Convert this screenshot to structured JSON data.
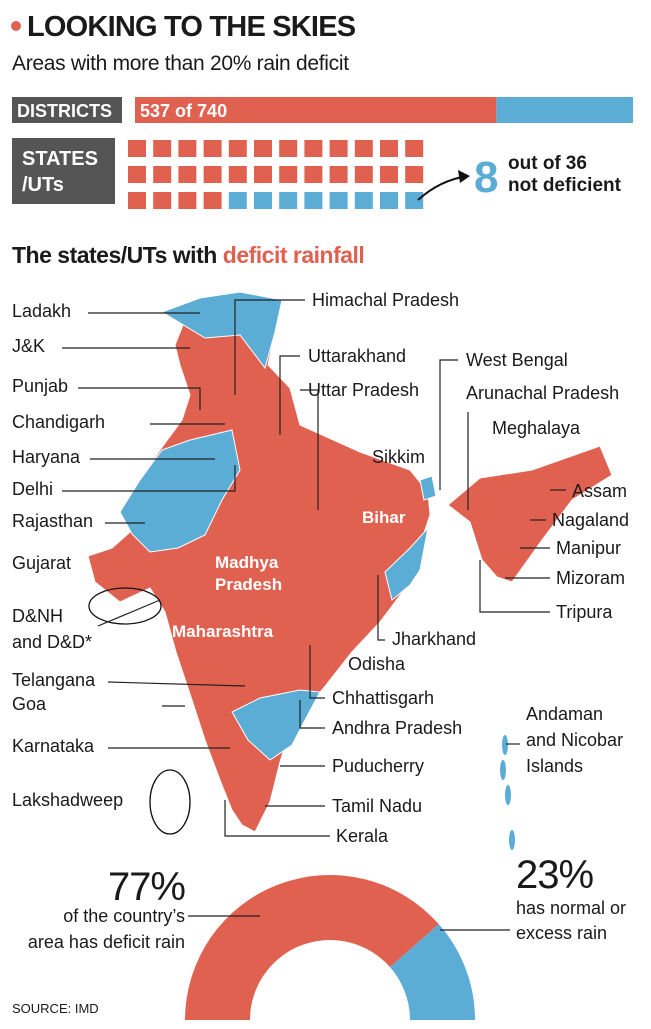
{
  "header": {
    "title": "LOOKING TO THE SKIES",
    "subtitle": "Areas with more than 20% rain deficit"
  },
  "districts": {
    "label": "DISTRICTS",
    "deficient": 537,
    "joiner": "of",
    "total": 740
  },
  "states": {
    "label_lines": [
      "STATES",
      "/UTs"
    ],
    "total": 36,
    "not_deficient": 8,
    "total_prefix": "out of",
    "note": "not deficient"
  },
  "colors": {
    "deficit": "#e06150",
    "normal": "#5badd6",
    "label_box": "#555555"
  },
  "map": {
    "heading": "The states/UTs with",
    "heading_highlight": "deficit rainfall",
    "left_labels": [
      [
        "Ladakh"
      ],
      [
        "J&K"
      ],
      [
        "Punjab"
      ],
      [
        "Chandigarh"
      ],
      [
        "Haryana"
      ],
      [
        "Delhi"
      ],
      [
        "Rajasthan"
      ],
      [
        "Gujarat"
      ],
      [
        "D&NH",
        "and D&D*"
      ],
      [
        "Telangana"
      ],
      [
        "Goa"
      ],
      [
        "Karnataka"
      ],
      [
        "Lakshadweep"
      ]
    ],
    "right_labels": [
      [
        "Himachal Pradesh"
      ],
      [
        "Uttarakhand"
      ],
      [
        "Uttar Pradesh"
      ],
      [
        "West Bengal"
      ],
      [
        "Arunachal Pradesh"
      ],
      [
        "Meghalaya"
      ],
      [
        "Sikkim"
      ],
      [
        "Assam"
      ],
      [
        "Nagaland"
      ],
      [
        "Manipur"
      ],
      [
        "Mizoram"
      ],
      [
        "Tripura"
      ],
      [
        "Jharkhand"
      ],
      [
        "Odisha"
      ],
      [
        "Chhattisgarh"
      ],
      [
        "Andhra Pradesh"
      ],
      [
        "Andaman",
        "and Nicobar",
        "Islands"
      ],
      [
        "Puducherry"
      ],
      [
        "Tamil Nadu"
      ],
      [
        "Kerala"
      ]
    ],
    "map_labels": [
      [
        "Bihar"
      ],
      [
        "Madhya",
        "Pradesh"
      ],
      [
        "Maharashtra"
      ]
    ]
  },
  "donut": {
    "values": [
      77,
      23
    ],
    "value_labels": [
      "77%",
      "23%"
    ],
    "captions": [
      [
        "of the country’s",
        "area has deficit rain"
      ],
      [
        "has normal or",
        "excess rain"
      ]
    ]
  },
  "source": "SOURCE: IMD"
}
